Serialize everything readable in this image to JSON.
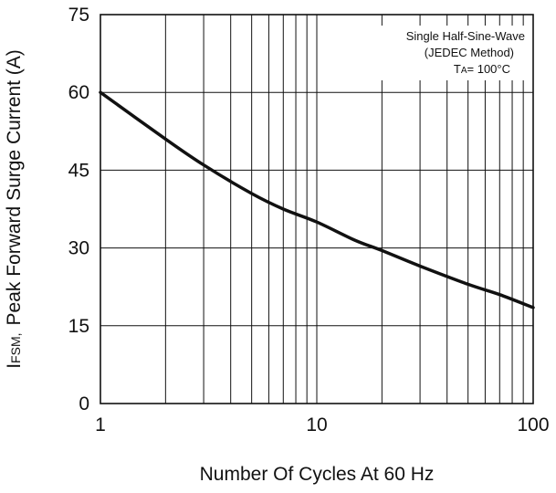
{
  "chart_data": {
    "type": "line",
    "x_scale": "log",
    "xlim": [
      1,
      100
    ],
    "ylim": [
      0,
      75
    ],
    "grid": true,
    "x_ticks": [
      1,
      10,
      100
    ],
    "x_tick_labels": [
      "1",
      "10",
      "100"
    ],
    "x_gridlines": [
      1,
      2,
      3,
      4,
      5,
      6,
      7,
      8,
      9,
      10,
      20,
      30,
      40,
      50,
      60,
      70,
      80,
      90,
      100
    ],
    "y_ticks": [
      0,
      15,
      30,
      45,
      60,
      75
    ],
    "y_tick_labels": [
      "0",
      "15",
      "30",
      "45",
      "60",
      "75"
    ],
    "xlabel": "Number Of  Cycles  At 60 Hz",
    "ylabel": {
      "prefix": "I",
      "subscript": "FSM,",
      "text": "Peak  Forward Surge Current (A)"
    },
    "annotation": {
      "line1": "Single Half-Sine-Wave",
      "line2": "(JEDEC Method)",
      "line3_prefix": "T",
      "line3_sub": "A",
      "line3_text": "= 100°C"
    },
    "series": [
      {
        "x": [
          1,
          2,
          3,
          5,
          7,
          10,
          15,
          20,
          30,
          50,
          70,
          100
        ],
        "y": [
          60,
          51,
          46,
          40.5,
          37.5,
          35,
          31.5,
          29.5,
          26.5,
          23,
          21,
          18.5
        ]
      }
    ],
    "colors": {
      "line": "#111111",
      "grid": "#111111",
      "background": "#ffffff"
    }
  }
}
